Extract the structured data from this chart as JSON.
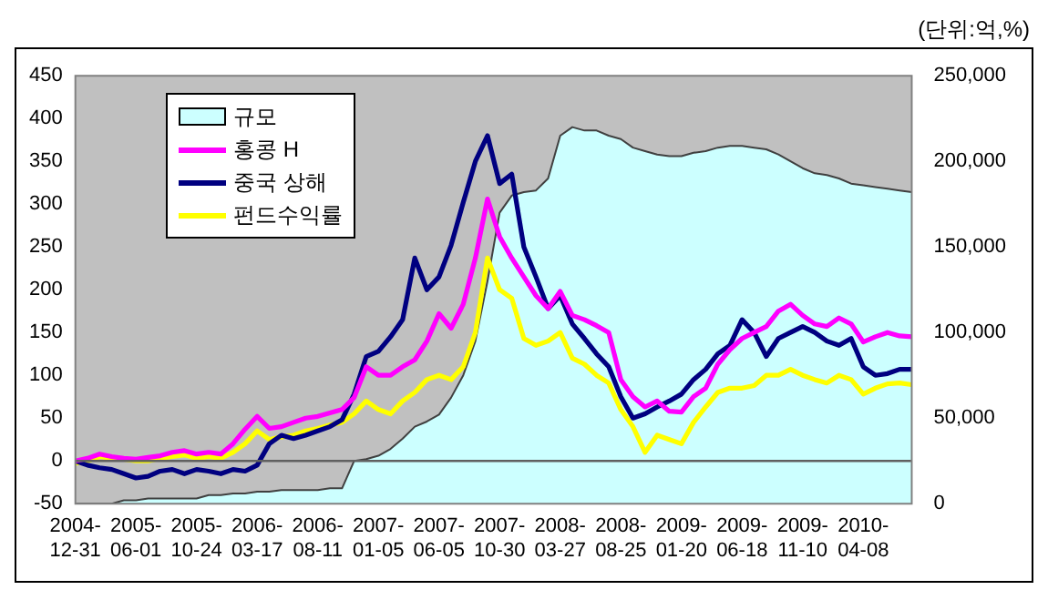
{
  "chart_data": {
    "type": "line",
    "categories": [
      "2004-12-31",
      null,
      null,
      null,
      null,
      "2005-06-01",
      null,
      null,
      null,
      null,
      "2005-10-24",
      null,
      null,
      null,
      null,
      "2006-03-17",
      null,
      null,
      null,
      null,
      "2006-08-11",
      null,
      null,
      null,
      null,
      "2007-01-05",
      null,
      null,
      null,
      null,
      "2007-06-05",
      null,
      null,
      null,
      null,
      "2007-10-30",
      null,
      null,
      null,
      null,
      "2008-03-27",
      null,
      null,
      null,
      null,
      "2008-08-25",
      null,
      null,
      null,
      null,
      "2009-01-20",
      null,
      null,
      null,
      null,
      "2009-06-18",
      null,
      null,
      null,
      null,
      "2009-11-10",
      null,
      null,
      null,
      null,
      "2010-04-08",
      null,
      null,
      null,
      null
    ],
    "series": [
      {
        "name": "규모",
        "type": "area",
        "axis": "y2",
        "color": "#ccffff",
        "values": [
          0,
          0,
          0,
          0,
          2000,
          2000,
          3000,
          3000,
          3000,
          3000,
          3000,
          5000,
          5000,
          6000,
          6000,
          7000,
          7000,
          8000,
          8000,
          8000,
          8000,
          9000,
          9000,
          25000,
          26000,
          28000,
          32000,
          38000,
          45000,
          48000,
          52000,
          62000,
          75000,
          95000,
          130000,
          170000,
          180000,
          182000,
          183000,
          190000,
          215000,
          220000,
          218000,
          218000,
          215000,
          213000,
          208000,
          206000,
          204000,
          203000,
          203000,
          205000,
          206000,
          208000,
          209000,
          209000,
          208000,
          207000,
          204000,
          200000,
          196000,
          193000,
          192000,
          190000,
          187000,
          186000,
          185000,
          184000,
          183000,
          182000
        ]
      },
      {
        "name": "홍콩 H",
        "color": "#ff00ff",
        "values": [
          0,
          3,
          8,
          5,
          3,
          2,
          4,
          6,
          10,
          12,
          8,
          10,
          8,
          20,
          37,
          52,
          38,
          40,
          45,
          50,
          52,
          56,
          60,
          74,
          110,
          100,
          100,
          110,
          118,
          140,
          172,
          155,
          183,
          237,
          306,
          262,
          237,
          215,
          193,
          178,
          198,
          170,
          165,
          158,
          150,
          95,
          75,
          63,
          70,
          58,
          57,
          75,
          85,
          113,
          130,
          143,
          150,
          157,
          175,
          183,
          170,
          160,
          157,
          167,
          160,
          139,
          145,
          150,
          146,
          145
        ]
      },
      {
        "name": "중국 상해",
        "color": "#000080",
        "values": [
          0,
          -5,
          -8,
          -10,
          -15,
          -20,
          -18,
          -12,
          -10,
          -15,
          -10,
          -12,
          -15,
          -10,
          -12,
          -5,
          20,
          30,
          26,
          30,
          35,
          40,
          48,
          78,
          122,
          128,
          145,
          165,
          237,
          200,
          215,
          252,
          302,
          350,
          380,
          324,
          335,
          250,
          215,
          178,
          193,
          160,
          143,
          125,
          110,
          75,
          50,
          55,
          63,
          70,
          78,
          95,
          107,
          125,
          135,
          165,
          150,
          122,
          143,
          150,
          157,
          150,
          140,
          135,
          143,
          110,
          100,
          102,
          107,
          107
        ]
      },
      {
        "name": "펀드수익률",
        "color": "#ffff00",
        "values": [
          -3,
          0,
          5,
          3,
          2,
          0,
          0,
          3,
          5,
          7,
          3,
          5,
          3,
          10,
          20,
          35,
          25,
          28,
          30,
          35,
          38,
          42,
          45,
          55,
          70,
          60,
          55,
          70,
          80,
          95,
          100,
          95,
          110,
          150,
          237,
          200,
          190,
          143,
          135,
          140,
          150,
          120,
          113,
          100,
          91,
          60,
          40,
          10,
          30,
          25,
          20,
          45,
          63,
          80,
          85,
          85,
          88,
          100,
          100,
          107,
          100,
          95,
          91,
          100,
          95,
          78,
          85,
          90,
          91,
          89
        ]
      }
    ],
    "ylim": [
      -50,
      450
    ],
    "yticks": [
      -50,
      0,
      50,
      100,
      150,
      200,
      250,
      300,
      350,
      400,
      450
    ],
    "y2lim": [
      0,
      250000
    ],
    "y2ticks": [
      0,
      {
        "value": 50000,
        "label": "50,000"
      },
      {
        "value": 100000,
        "label": "100,000"
      },
      {
        "value": 150000,
        "label": "150,000"
      },
      {
        "value": 200000,
        "label": "200,000"
      },
      {
        "value": 250000,
        "label": "250,000"
      }
    ],
    "ref_lines": [
      {
        "axis": "y",
        "value": 0,
        "color": "#606060"
      }
    ],
    "annotations": [
      "(단위:억,%)"
    ],
    "legend": "top left",
    "grid": false
  }
}
